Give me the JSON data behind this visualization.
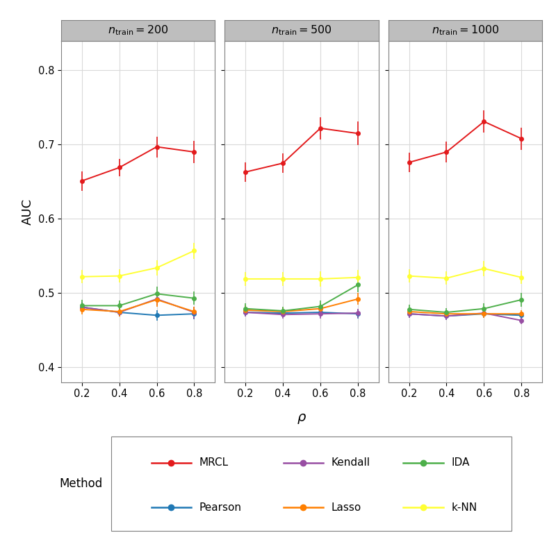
{
  "x_values": [
    0.2,
    0.4,
    0.6,
    0.8
  ],
  "panels": [
    {
      "title": "$n_{\\mathrm{train}} = 200$",
      "MRCL": {
        "y": [
          0.651,
          0.669,
          0.697,
          0.69
        ],
        "yerr": [
          0.013,
          0.012,
          0.014,
          0.015
        ]
      },
      "Pearson": {
        "y": [
          0.481,
          0.474,
          0.47,
          0.472
        ],
        "yerr": [
          0.007,
          0.006,
          0.007,
          0.007
        ]
      },
      "Kendall": {
        "y": [
          0.481,
          0.474,
          0.492,
          0.474
        ],
        "yerr": [
          0.007,
          0.006,
          0.009,
          0.008
        ]
      },
      "Lasso": {
        "y": [
          0.478,
          0.475,
          0.491,
          0.475
        ],
        "yerr": [
          0.007,
          0.007,
          0.009,
          0.007
        ]
      },
      "IDA": {
        "y": [
          0.483,
          0.483,
          0.499,
          0.493
        ],
        "yerr": [
          0.008,
          0.007,
          0.01,
          0.009
        ]
      },
      "k-NN": {
        "y": [
          0.522,
          0.523,
          0.534,
          0.557
        ],
        "yerr": [
          0.009,
          0.009,
          0.01,
          0.011
        ]
      }
    },
    {
      "title": "$n_{\\mathrm{train}} = 500$",
      "MRCL": {
        "y": [
          0.663,
          0.675,
          0.722,
          0.715
        ],
        "yerr": [
          0.013,
          0.013,
          0.015,
          0.016
        ]
      },
      "Pearson": {
        "y": [
          0.474,
          0.473,
          0.474,
          0.472
        ],
        "yerr": [
          0.006,
          0.005,
          0.006,
          0.006
        ]
      },
      "Kendall": {
        "y": [
          0.474,
          0.471,
          0.472,
          0.473
        ],
        "yerr": [
          0.006,
          0.005,
          0.006,
          0.006
        ]
      },
      "Lasso": {
        "y": [
          0.477,
          0.475,
          0.479,
          0.492
        ],
        "yerr": [
          0.006,
          0.006,
          0.007,
          0.008
        ]
      },
      "IDA": {
        "y": [
          0.479,
          0.476,
          0.482,
          0.511
        ],
        "yerr": [
          0.007,
          0.006,
          0.008,
          0.01
        ]
      },
      "k-NN": {
        "y": [
          0.519,
          0.519,
          0.519,
          0.521
        ],
        "yerr": [
          0.009,
          0.009,
          0.01,
          0.01
        ]
      }
    },
    {
      "title": "$n_{\\mathrm{train}} = 1000$",
      "MRCL": {
        "y": [
          0.676,
          0.69,
          0.731,
          0.708
        ],
        "yerr": [
          0.013,
          0.014,
          0.015,
          0.015
        ]
      },
      "Pearson": {
        "y": [
          0.472,
          0.469,
          0.472,
          0.47
        ],
        "yerr": [
          0.005,
          0.005,
          0.005,
          0.005
        ]
      },
      "Kendall": {
        "y": [
          0.472,
          0.469,
          0.473,
          0.463
        ],
        "yerr": [
          0.005,
          0.005,
          0.005,
          0.005
        ]
      },
      "Lasso": {
        "y": [
          0.475,
          0.472,
          0.472,
          0.472
        ],
        "yerr": [
          0.005,
          0.005,
          0.005,
          0.005
        ]
      },
      "IDA": {
        "y": [
          0.478,
          0.474,
          0.479,
          0.491
        ],
        "yerr": [
          0.006,
          0.006,
          0.007,
          0.009
        ]
      },
      "k-NN": {
        "y": [
          0.523,
          0.52,
          0.533,
          0.521
        ],
        "yerr": [
          0.009,
          0.009,
          0.01,
          0.009
        ]
      }
    }
  ],
  "methods": [
    "MRCL",
    "Pearson",
    "Kendall",
    "Lasso",
    "IDA",
    "k-NN"
  ],
  "colors": {
    "MRCL": "#E31A1C",
    "Pearson": "#1F78B4",
    "Kendall": "#984EA3",
    "Lasso": "#FF7F00",
    "IDA": "#4DAF4A",
    "k-NN": "#FFFF33"
  },
  "xlabel": "$\\rho$",
  "ylabel": "AUC",
  "ylim": [
    0.38,
    0.84
  ],
  "yticks": [
    0.4,
    0.5,
    0.6,
    0.7,
    0.8
  ],
  "xticks": [
    0.2,
    0.4,
    0.6,
    0.8
  ],
  "background_color": "#FFFFFF",
  "panel_bg": "#FFFFFF",
  "strip_bg": "#BEBEBE",
  "grid_color": "#D9D9D9",
  "border_color": "#7F7F7F"
}
